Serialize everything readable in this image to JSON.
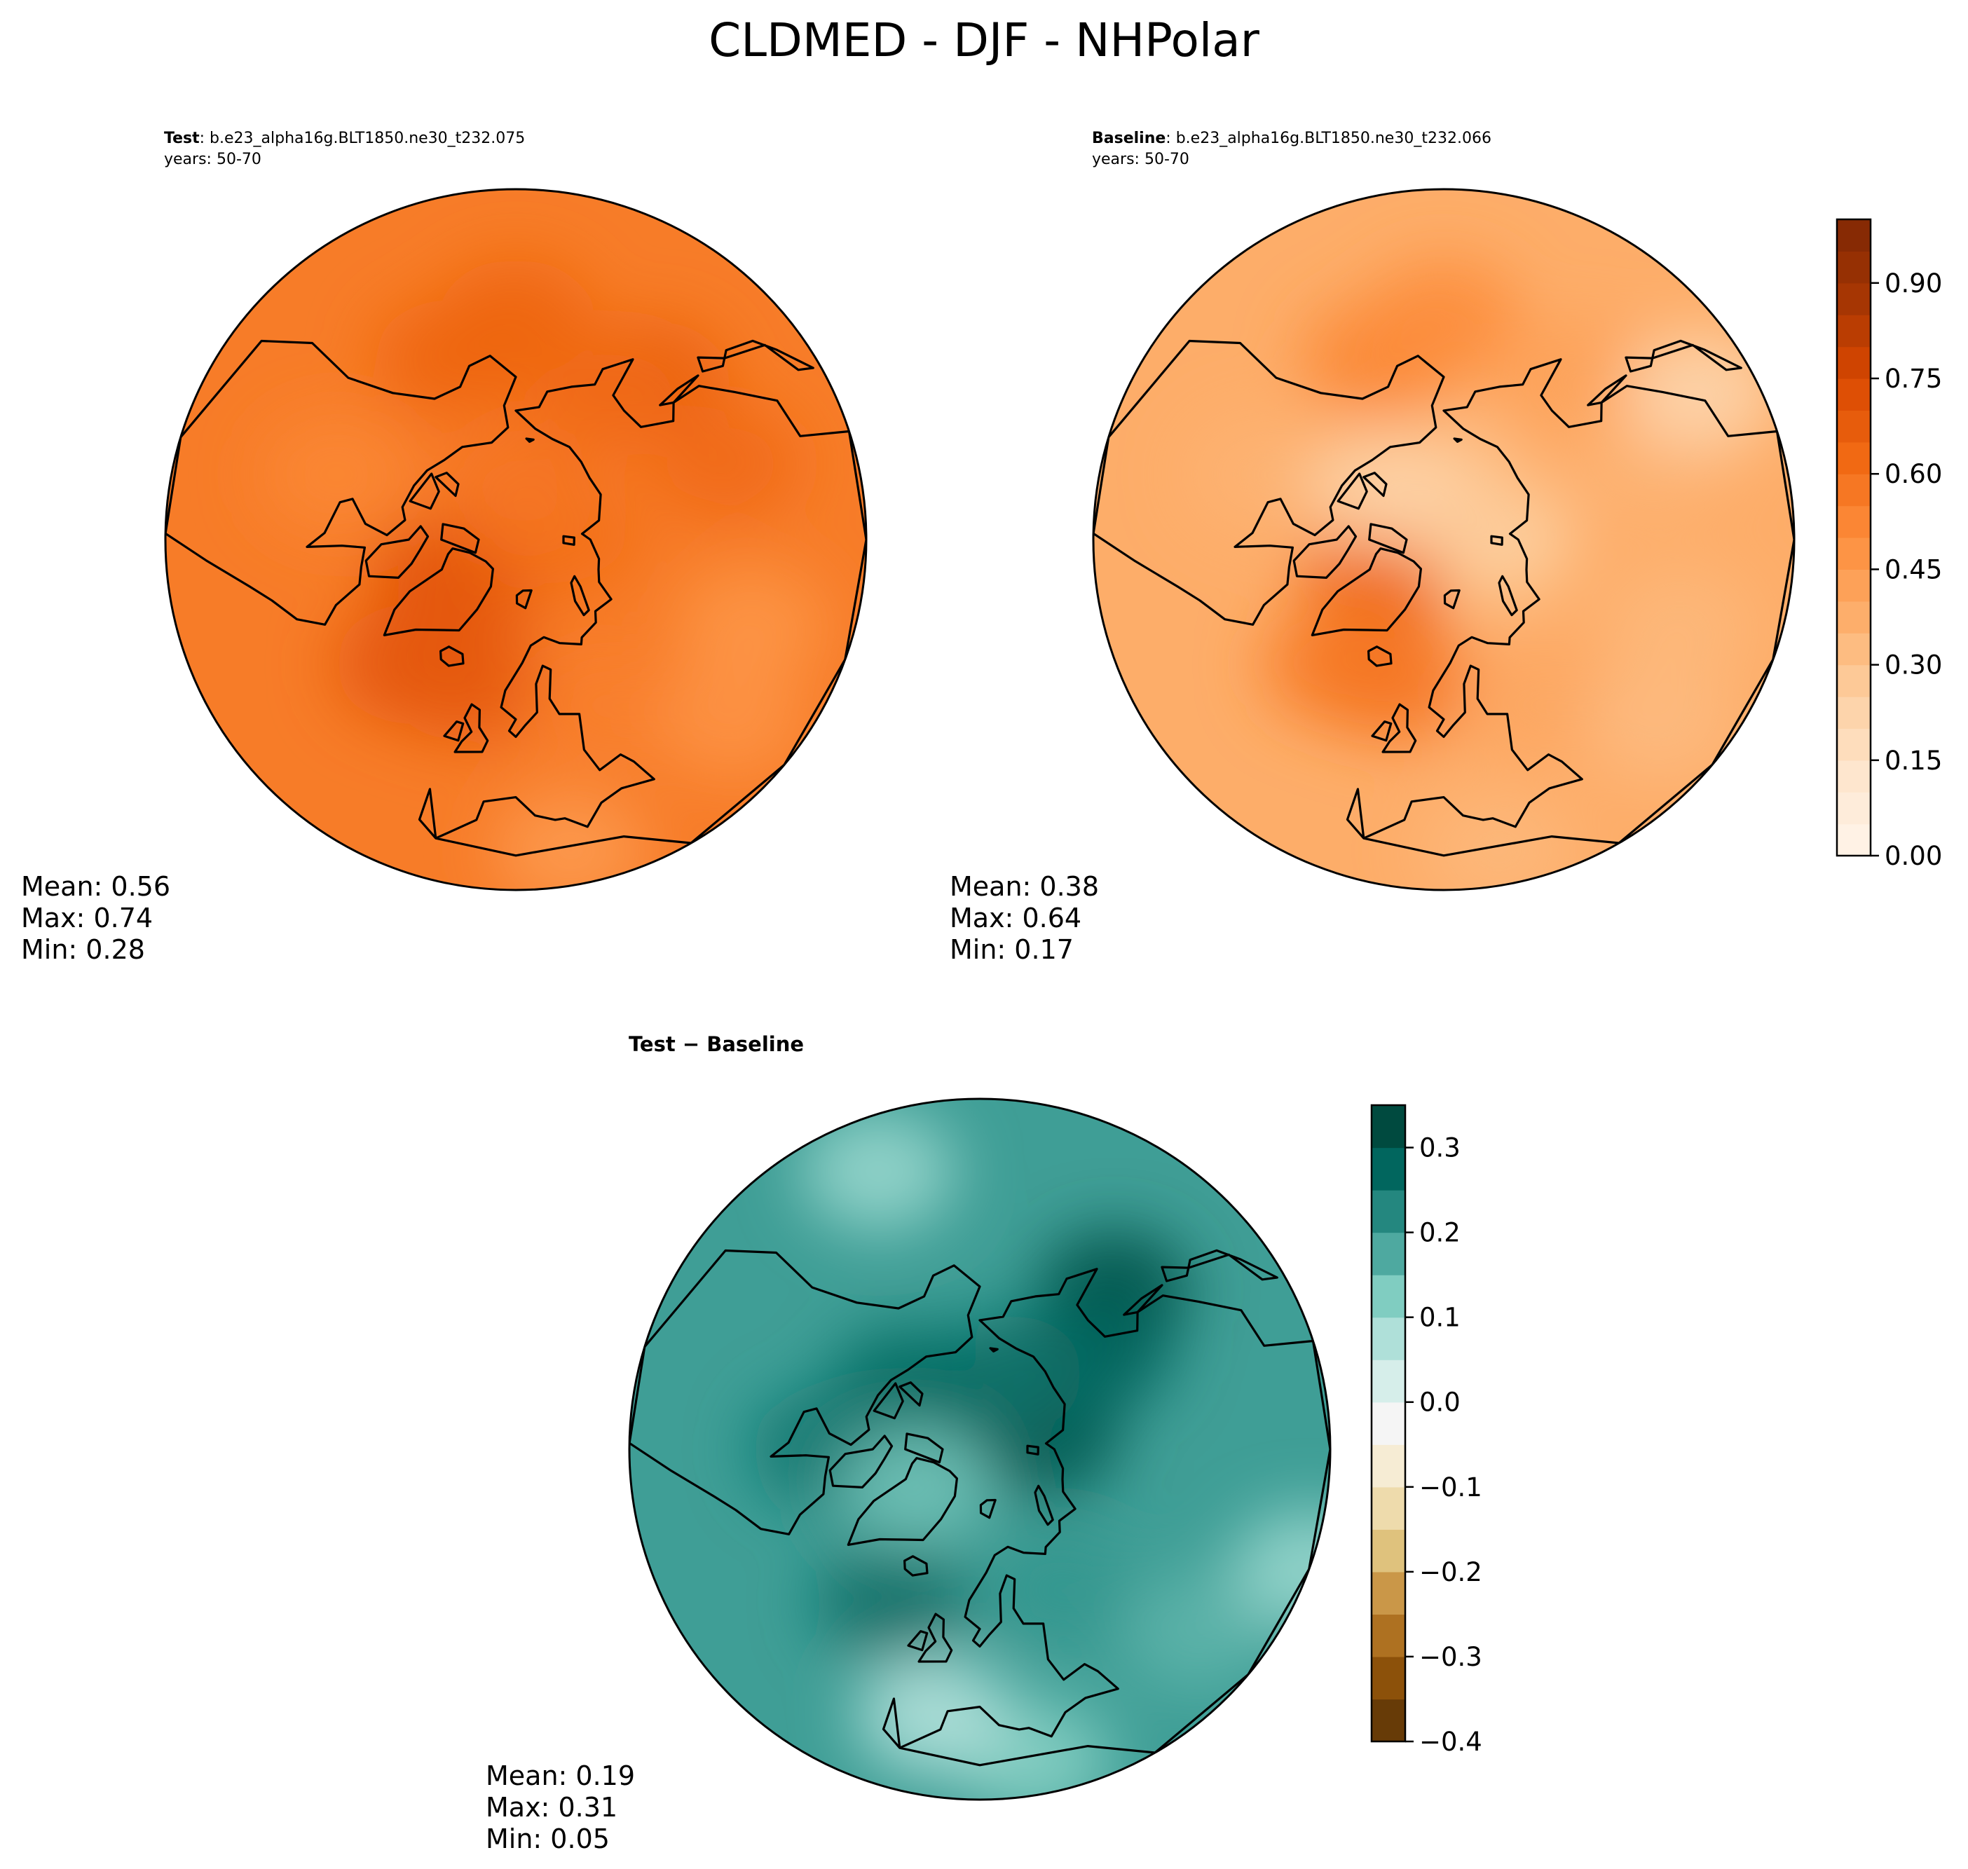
{
  "title": "CLDMED - DJF - NHPolar",
  "colors": {
    "seq_light": "#fff5eb",
    "seq_dark": "#7f2704",
    "div_low": "#543005",
    "div_mid": "#f5f5f5",
    "div_high": "#003c30",
    "coast": "#000000"
  },
  "panels": {
    "test": {
      "label_bold": "Test",
      "label_rest": ": b.e23_alpha16g.BLT1850.ne30_t232.075",
      "years": "years: 50-70",
      "stats": {
        "mean": "Mean:  0.56",
        "max": "Max:  0.74",
        "min": "Min:  0.28"
      }
    },
    "baseline": {
      "label_bold": "Baseline",
      "label_rest": ": b.e23_alpha16g.BLT1850.ne30_t232.066",
      "years": "years: 50-70",
      "stats": {
        "mean": "Mean:  0.38",
        "max": "Max:  0.64",
        "min": "Min:  0.17"
      }
    },
    "diff": {
      "label": "Test − Baseline",
      "stats": {
        "mean": "Mean:  0.19",
        "max": "Max:  0.31",
        "min": "Min:  0.05"
      }
    }
  },
  "chart_data": [
    {
      "type": "heatmap",
      "name": "Test",
      "projection": "north polar stereographic",
      "variable": "CLDMED",
      "season": "DJF",
      "mean": 0.56,
      "max": 0.74,
      "min": 0.28,
      "colormap": "Oranges",
      "vlim": [
        0.0,
        1.0
      ],
      "colorbar_ticks": [
        "0.00",
        "0.15",
        "0.30",
        "0.45",
        "0.60",
        "0.75",
        "0.90"
      ],
      "blobs": [
        {
          "lon": -50,
          "lat": 76,
          "value": 0.74
        },
        {
          "lon": -40,
          "lat": 80,
          "value": 0.68
        },
        {
          "lon": -30,
          "lat": 60,
          "value": 0.7
        },
        {
          "lon": -10,
          "lat": 62,
          "value": 0.68
        },
        {
          "lon": 150,
          "lat": 52,
          "value": 0.66
        },
        {
          "lon": 160,
          "lat": 60,
          "value": 0.62
        },
        {
          "lon": -150,
          "lat": 55,
          "value": 0.64
        },
        {
          "lon": -170,
          "lat": 50,
          "value": 0.64
        },
        {
          "lon": 120,
          "lat": 50,
          "value": 0.62
        },
        {
          "lon": 40,
          "lat": 55,
          "value": 0.55
        },
        {
          "lon": 60,
          "lat": 40,
          "value": 0.48
        },
        {
          "lon": 80,
          "lat": 45,
          "value": 0.47
        },
        {
          "lon": -100,
          "lat": 55,
          "value": 0.52
        },
        {
          "lon": 20,
          "lat": 35,
          "value": 0.45
        },
        {
          "lon": 100,
          "lat": 80,
          "value": 0.6
        },
        {
          "lon": -170,
          "lat": 80,
          "value": 0.58
        }
      ]
    },
    {
      "type": "heatmap",
      "name": "Baseline",
      "projection": "north polar stereographic",
      "variable": "CLDMED",
      "season": "DJF",
      "mean": 0.38,
      "max": 0.64,
      "min": 0.17,
      "colormap": "Oranges",
      "vlim": [
        0.0,
        1.0
      ],
      "colorbar_ticks": [
        "0.00",
        "0.15",
        "0.30",
        "0.45",
        "0.60",
        "0.75",
        "0.90"
      ],
      "blobs": [
        {
          "lon": -50,
          "lat": 76,
          "value": 0.64
        },
        {
          "lon": -30,
          "lat": 60,
          "value": 0.56
        },
        {
          "lon": -10,
          "lat": 62,
          "value": 0.58
        },
        {
          "lon": 150,
          "lat": 52,
          "value": 0.42
        },
        {
          "lon": -150,
          "lat": 55,
          "value": 0.52
        },
        {
          "lon": -170,
          "lat": 50,
          "value": 0.5
        },
        {
          "lon": 120,
          "lat": 50,
          "value": 0.36
        },
        {
          "lon": 40,
          "lat": 55,
          "value": 0.4
        },
        {
          "lon": 60,
          "lat": 40,
          "value": 0.33
        },
        {
          "lon": 80,
          "lat": 45,
          "value": 0.34
        },
        {
          "lon": -100,
          "lat": 55,
          "value": 0.36
        },
        {
          "lon": 20,
          "lat": 35,
          "value": 0.34
        },
        {
          "lon": 100,
          "lat": 80,
          "value": 0.25
        },
        {
          "lon": -170,
          "lat": 80,
          "value": 0.28
        },
        {
          "lon": -120,
          "lat": 75,
          "value": 0.24
        },
        {
          "lon": 130,
          "lat": 38,
          "value": 0.22
        }
      ]
    },
    {
      "type": "heatmap",
      "name": "Test - Baseline",
      "projection": "north polar stereographic",
      "variable": "CLDMED",
      "season": "DJF",
      "mean": 0.19,
      "max": 0.31,
      "min": 0.05,
      "colormap": "BrBG",
      "vlim": [
        -0.4,
        0.35
      ],
      "colorbar_ticks": [
        "−0.4",
        "−0.3",
        "−0.2",
        "−0.1",
        "0.0",
        "0.1",
        "0.2",
        "0.3"
      ],
      "blobs": [
        {
          "lon": 150,
          "lat": 52,
          "value": 0.31
        },
        {
          "lon": 140,
          "lat": 62,
          "value": 0.28
        },
        {
          "lon": 110,
          "lat": 78,
          "value": 0.3
        },
        {
          "lon": 170,
          "lat": 75,
          "value": 0.26
        },
        {
          "lon": -120,
          "lat": 72,
          "value": 0.27
        },
        {
          "lon": -80,
          "lat": 62,
          "value": 0.25
        },
        {
          "lon": -20,
          "lat": 58,
          "value": 0.26
        },
        {
          "lon": -50,
          "lat": 76,
          "value": 0.14
        },
        {
          "lon": 60,
          "lat": 40,
          "value": 0.16
        },
        {
          "lon": 20,
          "lat": 35,
          "value": 0.12
        },
        {
          "lon": 0,
          "lat": 42,
          "value": 0.07
        },
        {
          "lon": 80,
          "lat": 30,
          "value": 0.1
        },
        {
          "lon": -150,
          "lat": 38,
          "value": 0.1
        },
        {
          "lon": 40,
          "lat": 60,
          "value": 0.2
        }
      ]
    }
  ]
}
